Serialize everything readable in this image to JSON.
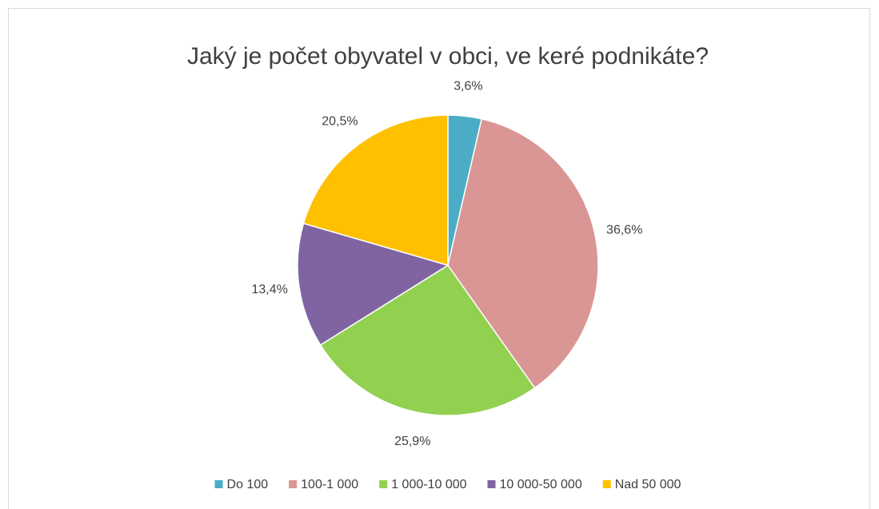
{
  "chart_data": {
    "type": "pie",
    "title": "Jaký je počet obyvatel v obci, ve keré podnikáte?",
    "categories": [
      "Do 100",
      "100-1 000",
      "1 000-10 000",
      "10 000-50 000",
      "Nad 50 000"
    ],
    "values": [
      3.6,
      36.6,
      25.9,
      13.4,
      20.5
    ],
    "value_labels": [
      "3,6%",
      "36,6%",
      "25,9%",
      "13,4%",
      "20,5%"
    ],
    "colors": [
      "#4bacc6",
      "#d99694",
      "#92d050",
      "#8064a2",
      "#ffc000"
    ],
    "legend": "bottom"
  }
}
